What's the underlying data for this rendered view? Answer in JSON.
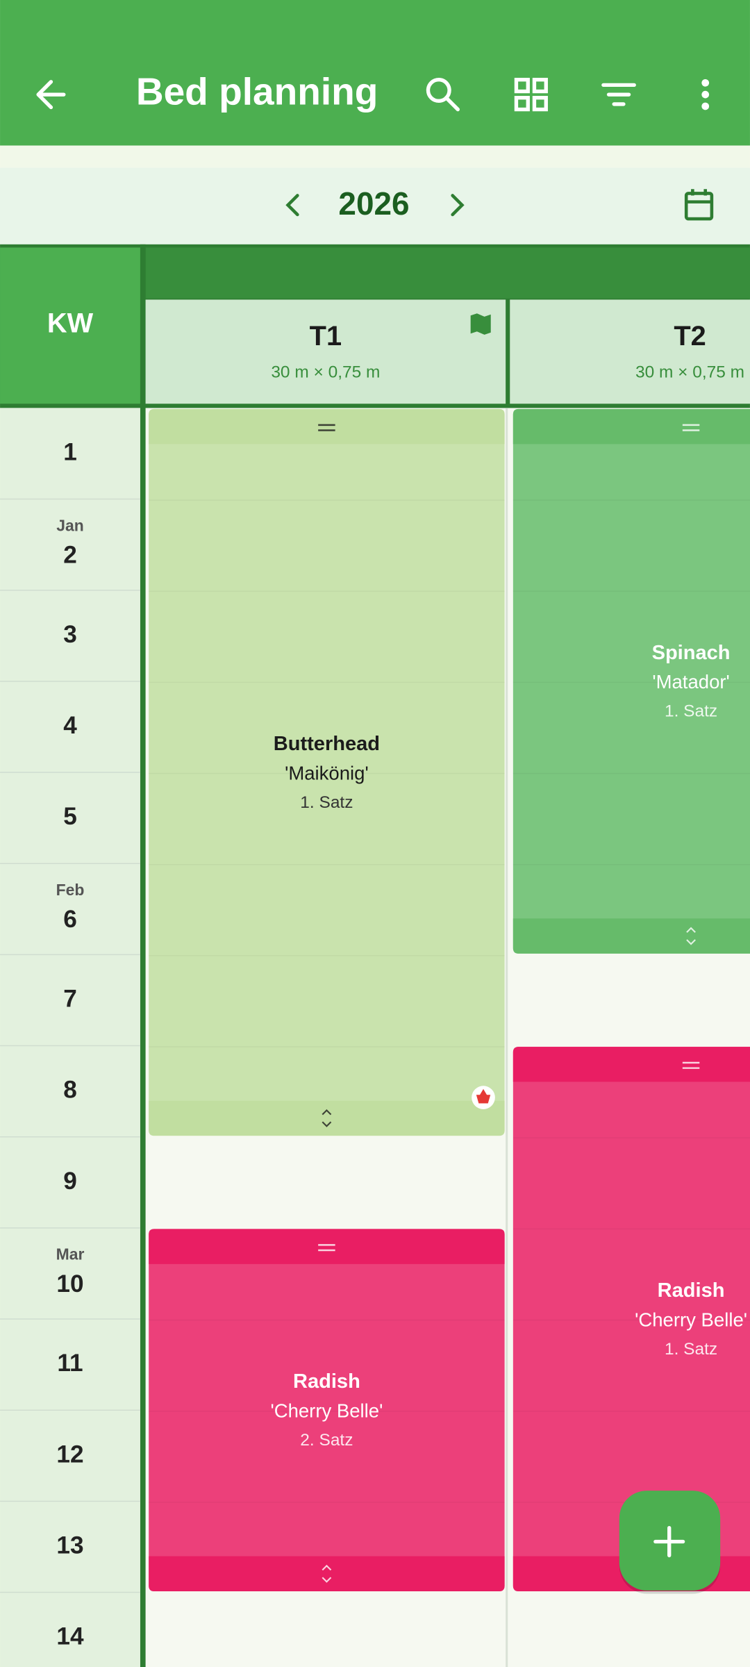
{
  "app_bar": {
    "title": "Bed planning"
  },
  "year_nav": {
    "year": "2026"
  },
  "grid": {
    "week_header": "KW",
    "weeks": [
      {
        "number": "1"
      },
      {
        "month": "Jan",
        "number": "2"
      },
      {
        "number": "3"
      },
      {
        "number": "4"
      },
      {
        "number": "5"
      },
      {
        "month": "Feb",
        "number": "6"
      },
      {
        "number": "7"
      },
      {
        "number": "8"
      },
      {
        "number": "9"
      },
      {
        "month": "Mar",
        "number": "10"
      },
      {
        "number": "11"
      },
      {
        "number": "12"
      },
      {
        "number": "13"
      },
      {
        "number": "14"
      }
    ],
    "beds": [
      {
        "name": "T1",
        "size": "30 m × 0,75 m"
      },
      {
        "name": "T2",
        "size": "30 m × 0,75 m"
      }
    ],
    "plantings": [
      {
        "crop": "Butterhead",
        "variety": "'Maikönig'",
        "succession": "1. Satz"
      },
      {
        "crop": "Radish",
        "variety": "'Cherry Belle'",
        "succession": "2. Satz"
      },
      {
        "crop": "Spinach",
        "variety": "'Matador'",
        "succession": "1. Satz"
      },
      {
        "crop": "Radish",
        "variety": "'Cherry Belle'",
        "succession": "1. Satz"
      }
    ]
  }
}
